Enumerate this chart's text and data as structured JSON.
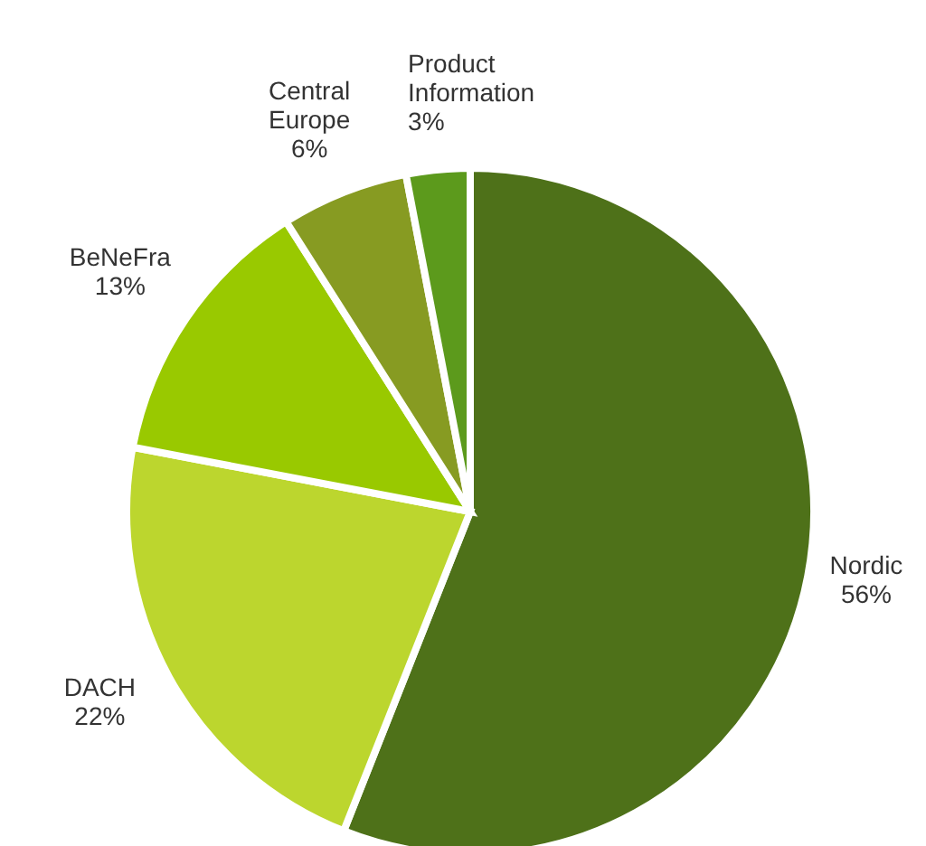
{
  "chart_data": {
    "type": "pie",
    "categories": [
      "Nordic",
      "DACH",
      "BeNeFra",
      "Central Europe",
      "Product Information"
    ],
    "values": [
      56,
      22,
      13,
      6,
      3
    ],
    "value_labels": [
      "56%",
      "22%",
      "13%",
      "6%",
      "3%"
    ],
    "colors": [
      "#4e7119",
      "#bcd62e",
      "#99c900",
      "#879b22",
      "#5c9a1c"
    ],
    "legend": false
  }
}
